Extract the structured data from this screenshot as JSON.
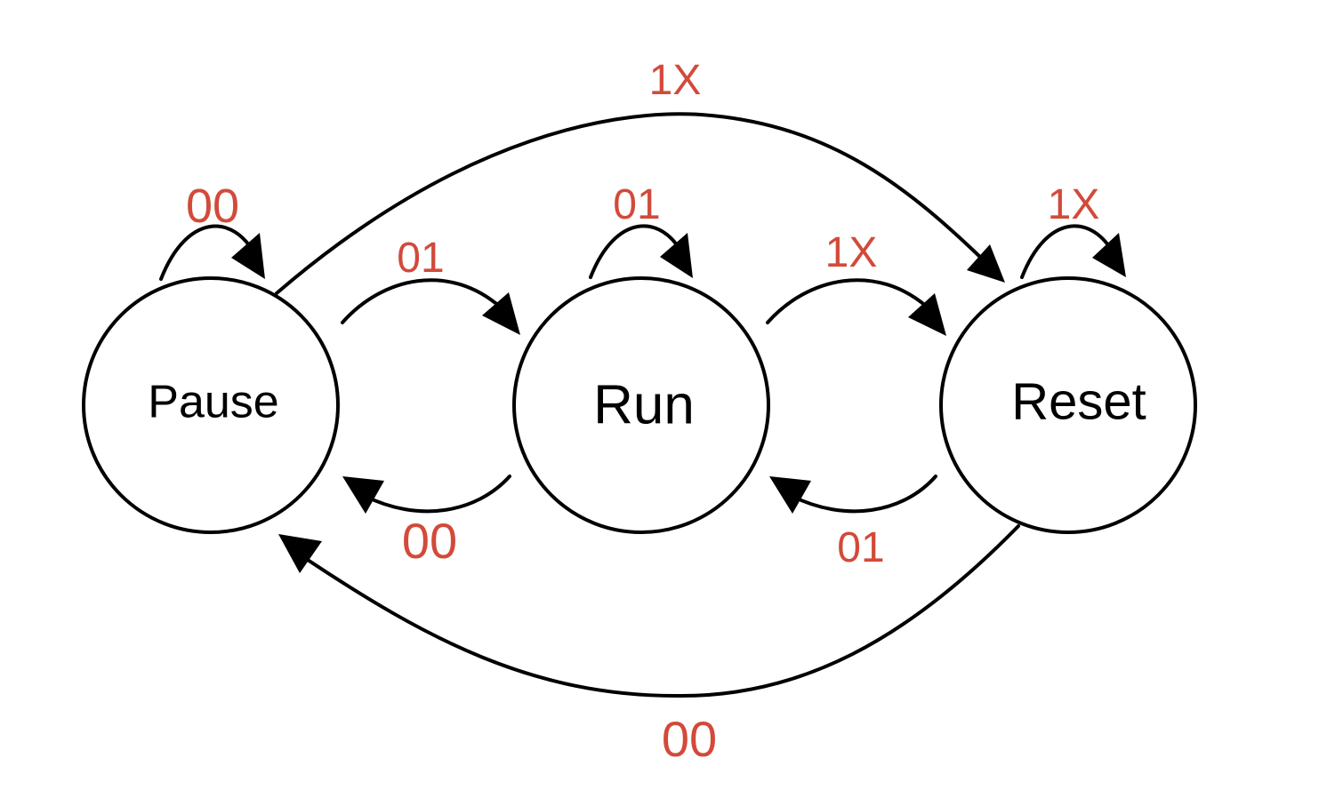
{
  "colors": {
    "edge_label": "#d24a3a",
    "stroke": "#000000",
    "background": "#ffffff"
  },
  "states": {
    "pause": "Pause",
    "run": "Run",
    "reset": "Reset"
  },
  "transitions": {
    "pause_self": "00",
    "run_self": "01",
    "reset_self": "1X",
    "pause_to_run": "01",
    "run_to_reset": "1X",
    "run_to_pause": "00",
    "reset_to_run": "01",
    "pause_to_reset": "1X",
    "reset_to_pause": "00"
  }
}
